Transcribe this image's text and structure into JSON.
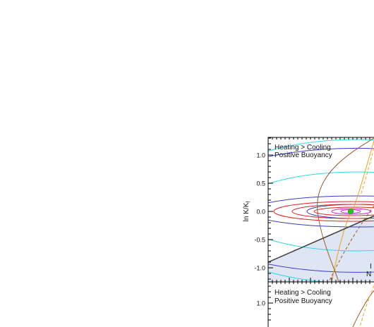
{
  "chart_data": [
    {
      "type": "line",
      "panel": "upper",
      "ylabel": "ln K/K",
      "ylabel_sub": "f",
      "ylim": [
        -1.25,
        1.35
      ],
      "yticks": [
        {
          "value": 1.0,
          "label": "1.0"
        },
        {
          "value": 0.5,
          "label": "0.5"
        },
        {
          "value": 0.0,
          "label": "0.0"
        },
        {
          "value": -0.5,
          "label": "-0.5"
        },
        {
          "value": -1.0,
          "label": "-1.0"
        }
      ],
      "annotations": {
        "top_left_line1": "Heating > Cooling",
        "top_left_line2": "Positive Buoyancy",
        "lower_right_line1": "I",
        "lower_right_line2": "N"
      },
      "shaded_region": {
        "color": "#dfe6f3",
        "description_visible": false
      },
      "colors": {
        "frame": "#000000",
        "diagonal": "#404040",
        "cyan_contour": "#30d8e8",
        "blue_contour": "#3a3ad0",
        "red_contour": "#e02020",
        "magenta_contour": "#d020d0",
        "brown_curve": "#9a5a2a",
        "orange_curve": "#f0a020",
        "green_marker": "#20c020",
        "shade": "#dfe6f3"
      }
    },
    {
      "type": "line",
      "panel": "lower",
      "ylim": [
        -1.25,
        1.35
      ],
      "yticks": [
        {
          "value": 1.0,
          "label": "1.0"
        }
      ],
      "annotations": {
        "top_left_line1": "Heating > Cooling",
        "top_left_line2": "Positive Buoyancy"
      }
    }
  ]
}
